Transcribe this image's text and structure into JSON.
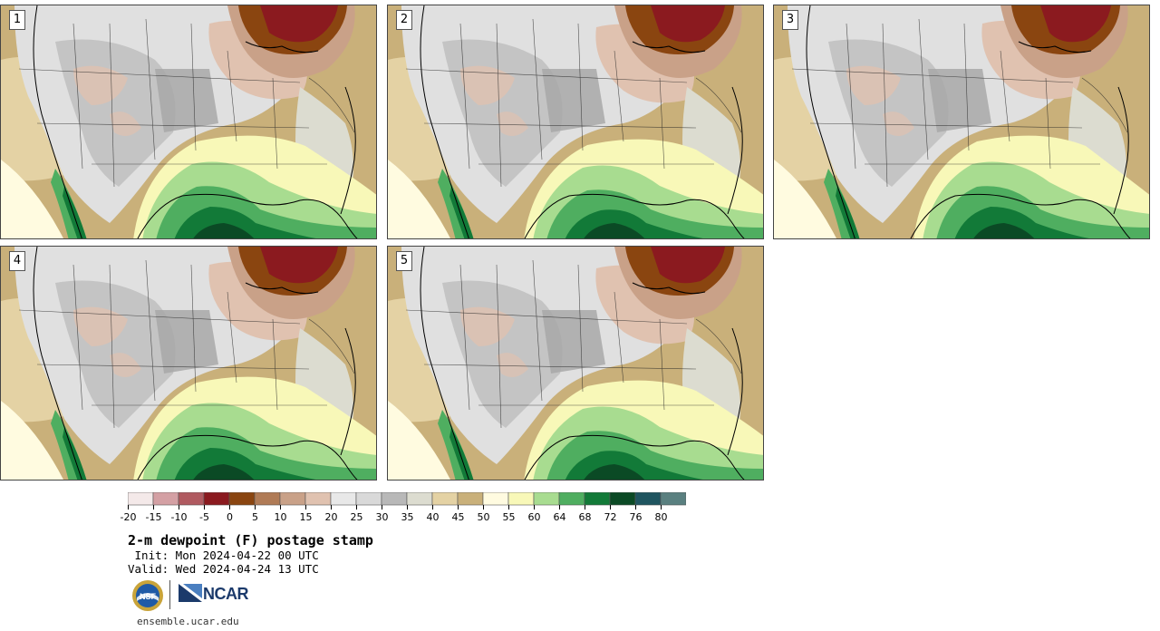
{
  "panels": [
    {
      "label": "1",
      "variant": 0
    },
    {
      "label": "2",
      "variant": 1
    },
    {
      "label": "3",
      "variant": 2
    },
    {
      "label": "4",
      "variant": 3
    },
    {
      "label": "5",
      "variant": 4
    }
  ],
  "colorbar": {
    "colors": [
      "#f4e9e9",
      "#d4a0a4",
      "#b05a60",
      "#8b1a1f",
      "#8a4510",
      "#b07b56",
      "#c9a188",
      "#e0c2b0",
      "#e8e8e8",
      "#d9d9d9",
      "#b8b8b8",
      "#dcdcd0",
      "#e4d2a4",
      "#c9b07a",
      "#fffbe0",
      "#f8f8b8",
      "#a8dc90",
      "#4fae60",
      "#127a38",
      "#0b4a25",
      "#1f5560",
      "#5a8080"
    ],
    "ticks": [
      "-20",
      "-15",
      "-10",
      "-5",
      "0",
      "5",
      "10",
      "15",
      "20",
      "25",
      "30",
      "35",
      "40",
      "45",
      "50",
      "55",
      "60",
      "64",
      "68",
      "72",
      "76",
      "80"
    ]
  },
  "title": "2-m dewpoint (F) postage stamp",
  "init": " Init: Mon 2024-04-22 00 UTC",
  "valid": "Valid: Wed 2024-04-24 13 UTC",
  "logos": {
    "nsf": "NSF",
    "ncar": "NCAR"
  },
  "website": "ensemble.ucar.edu"
}
